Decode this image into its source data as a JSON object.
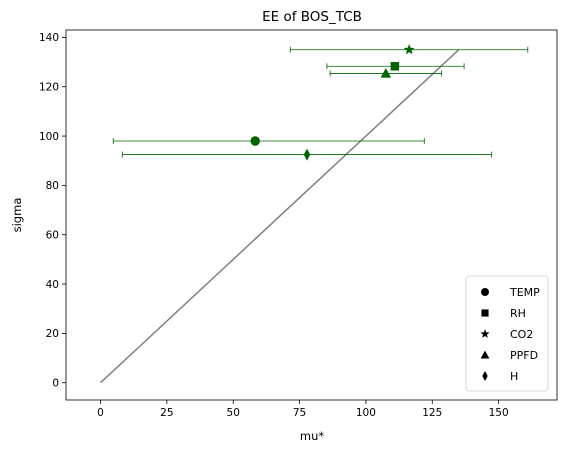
{
  "chart_data": {
    "type": "scatter",
    "title": "EE of BOS_TCB",
    "xlabel": "mu*",
    "ylabel": "sigma",
    "xlim": [
      -13,
      172
    ],
    "ylim": [
      -7,
      143
    ],
    "xticks": [
      0,
      25,
      50,
      75,
      100,
      125,
      150
    ],
    "yticks": [
      0,
      20,
      40,
      60,
      80,
      100,
      120,
      140
    ],
    "grid": false,
    "legend_position": "lower right",
    "marker_color": "#006400",
    "line_color": "#808080",
    "reference_line": {
      "x": [
        0,
        135
      ],
      "y": [
        0,
        135
      ]
    },
    "series": [
      {
        "name": "TEMP",
        "marker": "circle",
        "x": 58.3,
        "y": 98.0,
        "xerr_low": 4.8,
        "xerr_high": 122.0
      },
      {
        "name": "RH",
        "marker": "square",
        "x": 110.9,
        "y": 128.3,
        "xerr_low": 85.3,
        "xerr_high": 137.0
      },
      {
        "name": "CO2",
        "marker": "star",
        "x": 116.3,
        "y": 135.0,
        "xerr_low": 71.5,
        "xerr_high": 161.0
      },
      {
        "name": "PPFD",
        "marker": "triangle",
        "x": 107.5,
        "y": 125.4,
        "xerr_low": 86.5,
        "xerr_high": 128.5
      },
      {
        "name": "H",
        "marker": "diamond",
        "x": 77.8,
        "y": 92.5,
        "xerr_low": 8.2,
        "xerr_high": 147.3
      }
    ]
  }
}
